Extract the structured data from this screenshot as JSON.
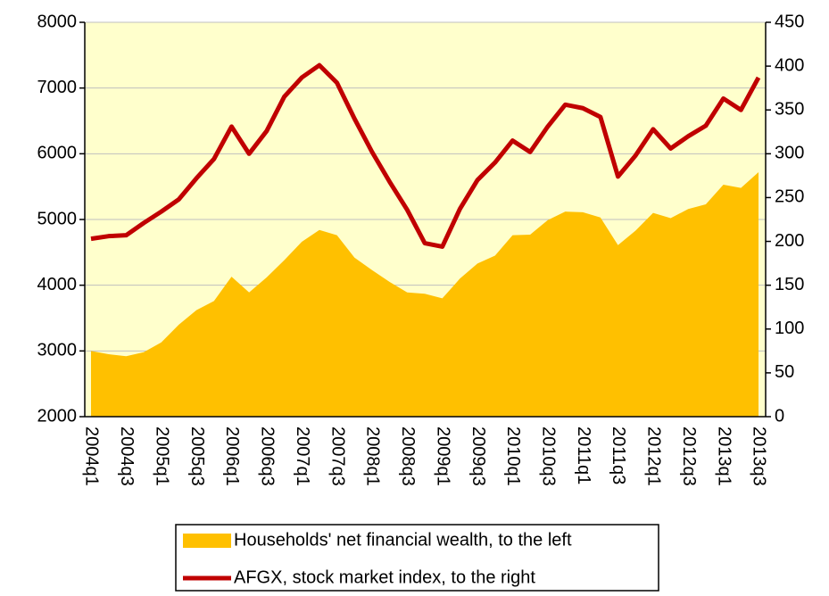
{
  "chart_data": {
    "type": "line",
    "categories": [
      "2004q1",
      null,
      "2004q3",
      null,
      "2005q1",
      null,
      "2005q3",
      null,
      "2006q1",
      null,
      "2006q3",
      null,
      "2007q1",
      null,
      "2007q3",
      null,
      "2008q1",
      null,
      "2008q3",
      null,
      "2009q1",
      null,
      "2009q3",
      null,
      "2010q1",
      null,
      "2010q3",
      null,
      "2011q1",
      null,
      "2011q3",
      null,
      "2012q1",
      null,
      "2012q3",
      null,
      "2013q1",
      null,
      "2013q3"
    ],
    "series": [
      {
        "name": "Households' net financial wealth, to  the left",
        "type": "area",
        "color": "#ffc000",
        "values": [
          3000,
          2950,
          2920,
          2980,
          3130,
          3400,
          3620,
          3760,
          4130,
          3890,
          4120,
          4380,
          4660,
          4840,
          4760,
          4420,
          4230,
          4050,
          3890,
          3870,
          3800,
          4100,
          4330,
          4450,
          4760,
          4770,
          4990,
          5120,
          5110,
          5030,
          4610,
          4830,
          5100,
          5020,
          5160,
          5230,
          5530,
          5480,
          5720
        ]
      },
      {
        "name": "AFGX, stock market index, to the right",
        "type": "line",
        "axis": "y2",
        "color": "#c00000",
        "values": [
          203,
          206,
          207,
          221,
          234,
          248,
          272,
          294,
          331,
          300,
          326,
          365,
          387,
          401,
          381,
          340,
          302,
          268,
          236,
          198,
          194,
          237,
          270,
          290,
          315,
          302,
          331,
          356,
          352,
          342,
          274,
          298,
          328,
          306,
          320,
          332,
          363,
          350,
          387
        ]
      }
    ],
    "ylim": [
      2000,
      8000
    ],
    "yticks": [
      2000,
      3000,
      4000,
      5000,
      6000,
      7000,
      8000
    ],
    "y2lim": [
      0,
      450
    ],
    "y2ticks": [
      0,
      50,
      100,
      150,
      200,
      250,
      300,
      350,
      400,
      450
    ],
    "grid": true,
    "background": "#ffffcc"
  }
}
